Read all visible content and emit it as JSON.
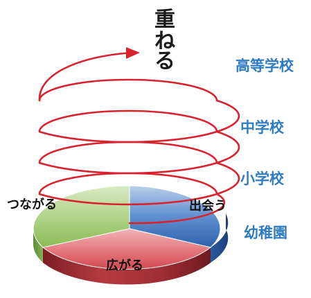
{
  "title": "重ねる",
  "stages": [
    {
      "label": "高等学校"
    },
    {
      "label": "中学校"
    },
    {
      "label": "小学校"
    },
    {
      "label": "幼稚園"
    }
  ],
  "pie": {
    "segments": [
      {
        "label": "出会う",
        "color": "#3f72bf"
      },
      {
        "label": "広がる",
        "color": "#d8535c"
      },
      {
        "label": "つながる",
        "color": "#9bc766"
      }
    ]
  },
  "colors": {
    "spiral": "#d8232e",
    "stage_text": "#2e7cc1",
    "title_text": "#1a1a1a"
  }
}
